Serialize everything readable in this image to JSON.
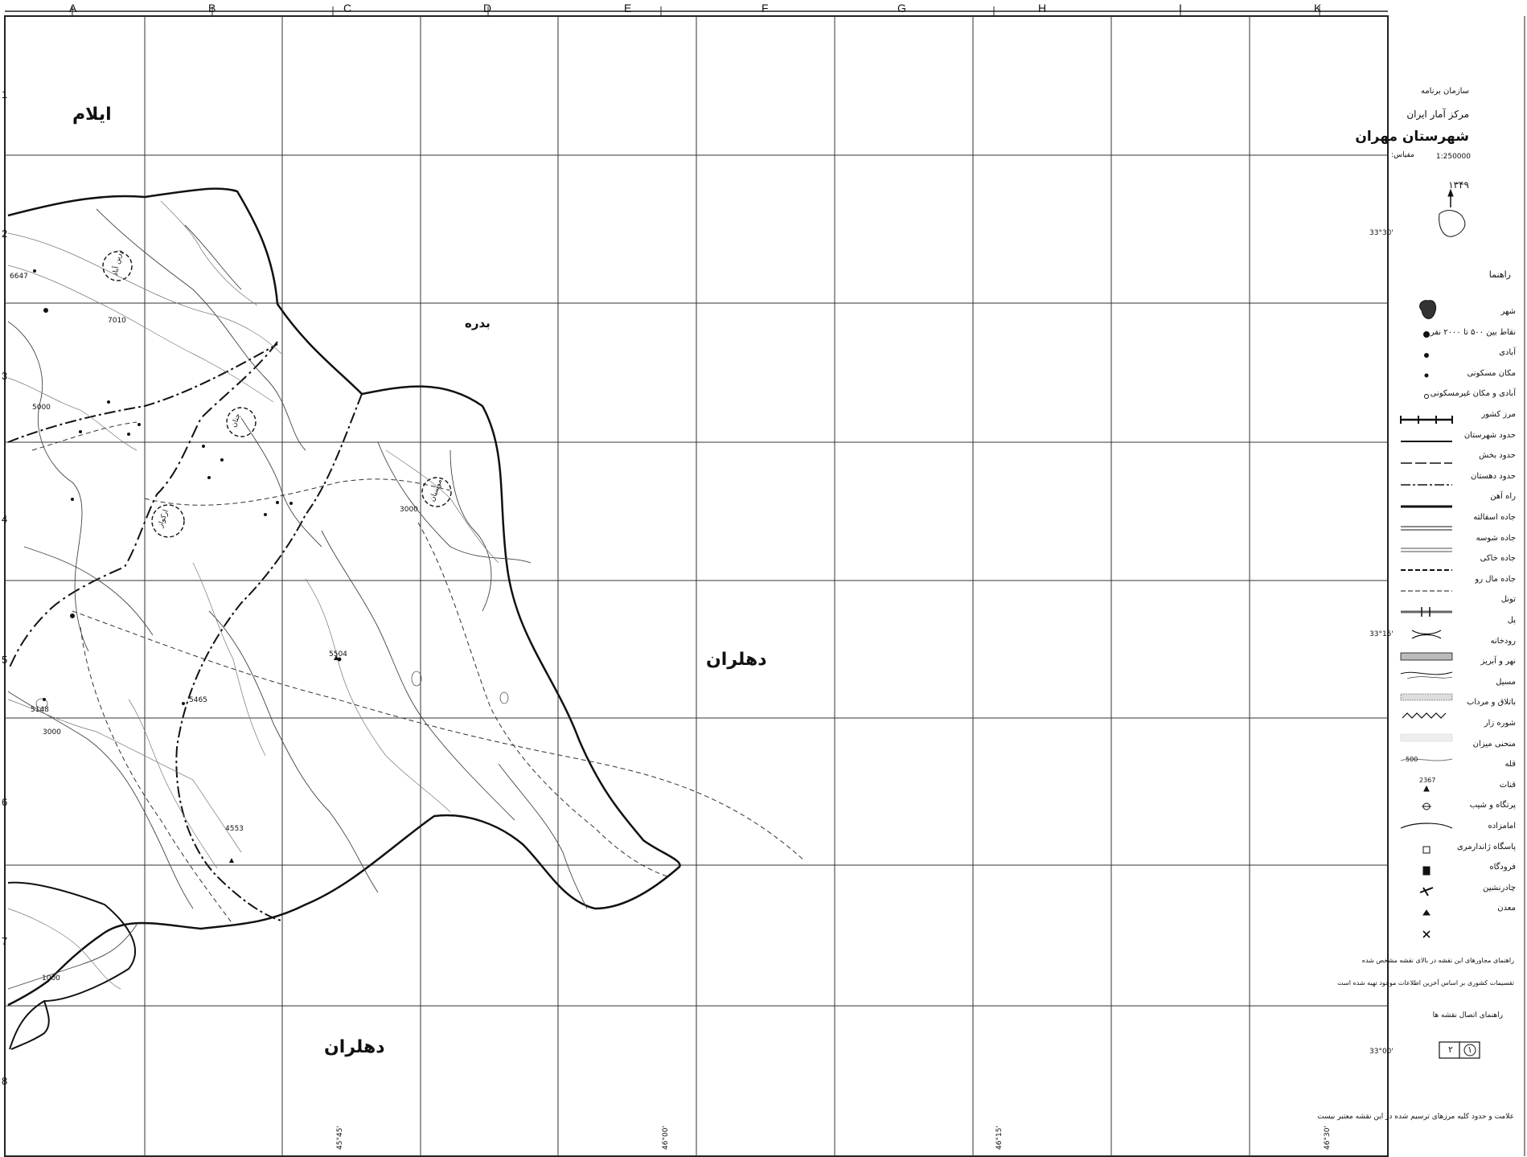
{
  "columns": [
    "A",
    "B",
    "C",
    "D",
    "E",
    "F",
    "G",
    "H",
    "I",
    "K"
  ],
  "rows": [
    "1",
    "2",
    "3",
    "4",
    "5",
    "6",
    "7",
    "8"
  ],
  "place_labels": {
    "ilam": "ایلام",
    "badreh": "بدره",
    "dehloran_center": "دهلران",
    "dehloran_south": "دهلران",
    "zarrinabad": "زرین آباد",
    "musian": "موسیان",
    "arkavaz": "ارکواز",
    "chanan": "چنان"
  },
  "elevations": {
    "e1": "6647",
    "e2": "5504",
    "e3": "5465",
    "e4": "4553",
    "e5": "5148",
    "c1": "5000",
    "c2": "3000",
    "c3": "3000",
    "c4": "1000",
    "c5": "7010"
  },
  "title_block": {
    "org": "سازمان برنامه",
    "center": "مرکز آمار ایران",
    "county": "شهرستان مهران",
    "scale_label": "مقیاس:",
    "scale_value": "1:250000",
    "year": "۱۳۴۹",
    "legend_heading": "راهنما"
  },
  "legend": [
    {
      "label": "شهر",
      "symbol": "city"
    },
    {
      "label": "نقاط بین ۵۰۰ تا ۲۰۰۰ نفر",
      "symbol": "dot-big"
    },
    {
      "label": "آبادی",
      "symbol": "dot-mid"
    },
    {
      "label": "مکان مسکونی",
      "symbol": "dot-small"
    },
    {
      "label": "آبادی و مکان غیرمسکونی",
      "symbol": "circle-open"
    },
    {
      "label": "مرز کشور",
      "symbol": "border-country"
    },
    {
      "label": "حدود شهرستان",
      "symbol": "line-thick"
    },
    {
      "label": "حدود بخش",
      "symbol": "line-dash-long"
    },
    {
      "label": "حدود دهستان",
      "symbol": "line-dash-dot"
    },
    {
      "label": "راه آهن",
      "symbol": "railway"
    },
    {
      "label": "جاده اسفالته",
      "symbol": "double-line"
    },
    {
      "label": "جاده شوسه",
      "symbol": "double-line-thin"
    },
    {
      "label": "جاده خاکی",
      "symbol": "dashed-bold"
    },
    {
      "label": "جاده مال رو",
      "symbol": "dashed-thin"
    },
    {
      "label": "تونل",
      "symbol": "tunnel"
    },
    {
      "label": "پل",
      "symbol": "bridge"
    },
    {
      "label": "رودخانه",
      "symbol": "river-wide"
    },
    {
      "label": "نهر و آبریز",
      "symbol": "stream"
    },
    {
      "label": "مسیل",
      "symbol": "wash"
    },
    {
      "label": "باتلاق و مرداب",
      "symbol": "marsh"
    },
    {
      "label": "شوره زار",
      "symbol": "salt"
    },
    {
      "label": "منحنی میزان",
      "symbol": "contour"
    },
    {
      "label": "قله",
      "symbol": "peak"
    },
    {
      "label": "قنات",
      "symbol": "qanat"
    },
    {
      "label": "پرتگاه و شیب",
      "symbol": "cliff"
    },
    {
      "label": "امامزاده",
      "symbol": "shrine"
    },
    {
      "label": "پاسگاه ژاندارمری",
      "symbol": "post"
    },
    {
      "label": "فرودگاه",
      "symbol": "airport"
    },
    {
      "label": "چادرنشین",
      "symbol": "tent"
    },
    {
      "label": "معدن",
      "symbol": "mine"
    }
  ],
  "legend_contour_value": "500",
  "legend_peak_value": "2367",
  "notes": {
    "note1": "راهنمای مجاورهای این نقشه در بالای نقشه مشخص شده",
    "note2": "تقسیمات کشوری بر اساس آخرین اطلاعات موجود تهیه شده است",
    "note3": "راهنمای اتصال نقشه ها"
  },
  "sheet_index": {
    "left": "۲",
    "right": "۱"
  },
  "footer_note": "علامت و حدود کلیه مرزهای ترسیم شده در این نقشه معتبر نیست",
  "margin_ticks": {
    "t1": "33°30'",
    "t2": "33°15'",
    "t3": "33°00'",
    "b1": "45°45'",
    "b2": "46°00'",
    "b3": "46°15'",
    "b4": "46°30'"
  }
}
